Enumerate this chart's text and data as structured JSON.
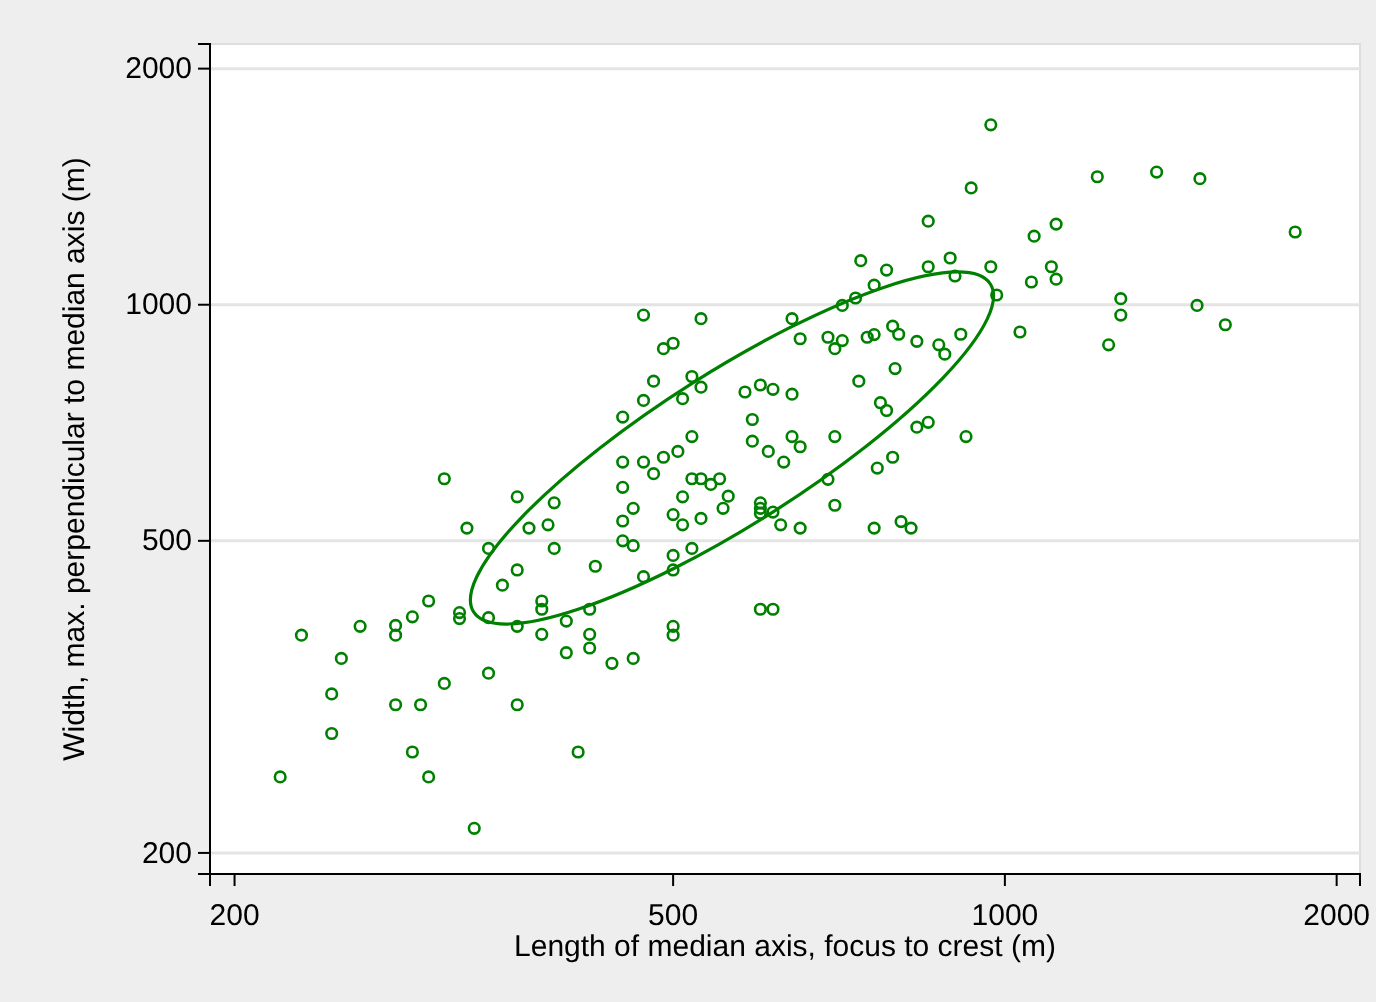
{
  "chart_data": {
    "type": "scatter",
    "xlabel": "Length of median axis, focus to crest (m)",
    "ylabel": "Width, max. perpendicular to median axis (m)",
    "log": "xy",
    "grid": "y",
    "marker": "circle",
    "xlim": [
      190,
      2100
    ],
    "ylim": [
      188,
      2150
    ],
    "xticks": [
      200,
      500,
      1000,
      2000
    ],
    "yticks": [
      200,
      500,
      1000,
      2000
    ],
    "series": [
      {
        "color": "#008000",
        "x": [
          470,
          530,
          641,
          490,
          500,
          480,
          520,
          470,
          510,
          530,
          581,
          600,
          616,
          641,
          450,
          590,
          520,
          590,
          610,
          641,
          630,
          450,
          470,
          490,
          505,
          480,
          310,
          361,
          390,
          450,
          520,
          530,
          541,
          551,
          561,
          555,
          510,
          460,
          500,
          510,
          530,
          600,
          600,
          600,
          616,
          626,
          450,
          325,
          370,
          385,
          340,
          390,
          450,
          460,
          520,
          500,
          500,
          470,
          425,
          361,
          350,
          300,
          380,
          380,
          420,
          400,
          380,
          420,
          420,
          400,
          440,
          460,
          500,
          500,
          600,
          616,
          320,
          320,
          340,
          361,
          290,
          280,
          280,
          260,
          230,
          250,
          245,
          310,
          340,
          280,
          295,
          361,
          245,
          290,
          410,
          220,
          300,
          330,
          971,
          1213,
          1373,
          1503,
          1834,
          932,
          852,
          1063,
          1113,
          740,
          781,
          852,
          892,
          901,
          971,
          983,
          1057,
          1102,
          1113,
          761,
          732,
          712,
          1274,
          1274,
          1242,
          1494,
          1585,
          1032,
          652,
          691,
          701,
          712,
          750,
          761,
          791,
          801,
          832,
          871,
          882,
          912,
          795,
          737,
          771,
          781,
          832,
          852,
          652,
          701,
          922,
          691,
          766,
          791,
          701,
          652,
          761,
          805,
          822
        ],
        "values": [
          970,
          960,
          960,
          879,
          893,
          799,
          810,
          755,
          759,
          785,
          774,
          790,
          780,
          769,
          719,
          714,
          679,
          670,
          650,
          679,
          630,
          630,
          630,
          639,
          650,
          609,
          600,
          569,
          559,
          585,
          600,
          600,
          590,
          600,
          570,
          550,
          569,
          550,
          540,
          524,
          534,
          559,
          550,
          542,
          544,
          524,
          530,
          519,
          519,
          524,
          489,
          489,
          500,
          493,
          489,
          479,
          459,
          450,
          464,
          459,
          439,
          419,
          419,
          409,
          409,
          395,
          380,
          380,
          365,
          360,
          349,
          354,
          389,
          379,
          409,
          409,
          405,
          398,
          399,
          389,
          400,
          390,
          379,
          389,
          379,
          354,
          319,
          329,
          339,
          309,
          309,
          309,
          284,
          269,
          269,
          250,
          250,
          215,
          1696,
          1456,
          1476,
          1448,
          1238,
          1409,
          1278,
          1223,
          1267,
          1138,
          1107,
          1118,
          1147,
          1088,
          1118,
          1029,
          1069,
          1118,
          1078,
          1059,
          1020,
          998,
          1018,
          970,
          889,
          998,
          943,
          923,
          905,
          909,
          879,
          900,
          909,
          916,
          939,
          917,
          898,
          889,
          865,
          917,
          829,
          799,
          750,
          733,
          698,
          708,
          659,
          679,
          679,
          599,
          619,
          639,
          555,
          519,
          519,
          529,
          519
        ]
      }
    ]
  }
}
